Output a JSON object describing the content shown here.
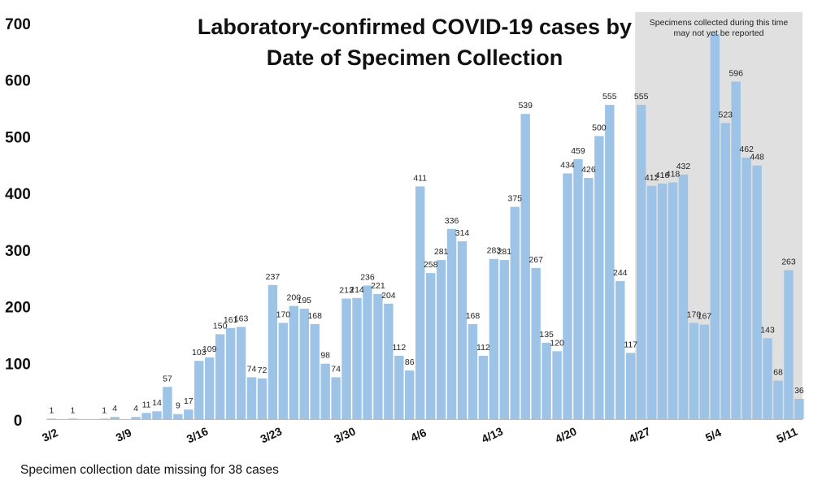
{
  "chart_data": {
    "type": "bar",
    "title_line1": "Laboratory-confirmed COVID-19 cases by",
    "title_line2": "Date of Specimen Collection",
    "shaded_note_line1": "Specimens collected during this time",
    "shaded_note_line2": "may not yet be reported",
    "footnote": "Specimen  collection date missing  for 38 cases",
    "ylim": [
      0,
      700
    ],
    "yticks": [
      0,
      100,
      200,
      300,
      400,
      500,
      600,
      700
    ],
    "x_tick_labels": [
      "3/2",
      "3/9",
      "3/16",
      "3/23",
      "3/30",
      "4/6",
      "4/13",
      "4/20",
      "4/27",
      "5/4",
      "5/11"
    ],
    "bar_color": "#9dc3e6",
    "shade_color": "#e0e0e0",
    "shaded_from_index": 56,
    "categories": [
      "3/2",
      "3/3",
      "3/4",
      "3/5",
      "3/6",
      "3/7",
      "3/8",
      "3/9",
      "3/10",
      "3/11",
      "3/12",
      "3/13",
      "3/14",
      "3/15",
      "3/16",
      "3/17",
      "3/18",
      "3/19",
      "3/20",
      "3/21",
      "3/22",
      "3/23",
      "3/24",
      "3/25",
      "3/26",
      "3/27",
      "3/28",
      "3/29",
      "3/30",
      "3/31",
      "4/1",
      "4/2",
      "4/3",
      "4/4",
      "4/5",
      "4/6",
      "4/7",
      "4/8",
      "4/9",
      "4/10",
      "4/11",
      "4/12",
      "4/13",
      "4/14",
      "4/15",
      "4/16",
      "4/17",
      "4/18",
      "4/19",
      "4/20",
      "4/21",
      "4/22",
      "4/23",
      "4/24",
      "4/25",
      "4/26",
      "4/27",
      "4/28",
      "4/29",
      "4/30",
      "5/1",
      "5/2",
      "5/3",
      "5/4",
      "5/5",
      "5/6",
      "5/7",
      "5/8",
      "5/9",
      "5/10",
      "5/11",
      "5/12"
    ],
    "values": [
      1,
      0,
      1,
      0,
      0,
      1,
      4,
      0,
      4,
      11,
      14,
      57,
      9,
      17,
      103,
      109,
      150,
      161,
      163,
      74,
      72,
      237,
      170,
      200,
      195,
      168,
      98,
      74,
      213,
      214,
      236,
      221,
      204,
      112,
      86,
      411,
      258,
      281,
      336,
      314,
      168,
      112,
      283,
      281,
      375,
      539,
      267,
      135,
      120,
      434,
      459,
      426,
      500,
      555,
      244,
      117,
      555,
      412,
      416,
      418,
      432,
      170,
      167,
      680,
      523,
      596,
      462,
      448,
      143,
      68,
      263,
      36
    ],
    "labels": [
      "1",
      "",
      "1",
      "",
      "",
      "1",
      "4",
      "",
      "4",
      "11",
      "14",
      "57",
      "9",
      "17",
      "103",
      "109",
      "150",
      "161",
      "163",
      "74",
      "72",
      "237",
      "170",
      "200",
      "195",
      "168",
      "98",
      "74",
      "213",
      "214",
      "236",
      "221",
      "204",
      "112",
      "86",
      "411",
      "258",
      "281",
      "336",
      "314",
      "168",
      "112",
      "283",
      "281",
      "375",
      "539",
      "267",
      "135",
      "120",
      "434",
      "459",
      "426",
      "500",
      "555",
      "244",
      "117",
      "555",
      "412",
      "416",
      "418",
      "432",
      "170",
      "167",
      "",
      "523",
      "596",
      "462",
      "448",
      "143",
      "68",
      "263",
      "36"
    ]
  }
}
